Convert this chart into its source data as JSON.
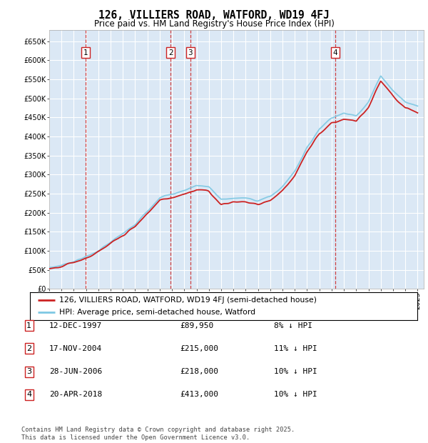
{
  "title": "126, VILLIERS ROAD, WATFORD, WD19 4FJ",
  "subtitle": "Price paid vs. HM Land Registry's House Price Index (HPI)",
  "ytick_values": [
    0,
    50000,
    100000,
    150000,
    200000,
    250000,
    300000,
    350000,
    400000,
    450000,
    500000,
    550000,
    600000,
    650000
  ],
  "hpi_color": "#7ec8e3",
  "price_color": "#cc2222",
  "vline_color": "#cc2222",
  "background_color": "#dbe8f5",
  "purchases": [
    {
      "label": "1",
      "date_str": "12-DEC-1997",
      "price": 89950,
      "pct": "8% ↓ HPI",
      "x_year": 1997.95
    },
    {
      "label": "2",
      "date_str": "17-NOV-2004",
      "price": 215000,
      "pct": "11% ↓ HPI",
      "x_year": 2004.88
    },
    {
      "label": "3",
      "date_str": "28-JUN-2006",
      "price": 218000,
      "pct": "10% ↓ HPI",
      "x_year": 2006.49
    },
    {
      "label": "4",
      "date_str": "20-APR-2018",
      "price": 413000,
      "pct": "10% ↓ HPI",
      "x_year": 2018.3
    }
  ],
  "legend_line1": "126, VILLIERS ROAD, WATFORD, WD19 4FJ (semi-detached house)",
  "legend_line2": "HPI: Average price, semi-detached house, Watford",
  "footnote": "Contains HM Land Registry data © Crown copyright and database right 2025.\nThis data is licensed under the Open Government Licence v3.0.",
  "xlim": [
    1995,
    2025.5
  ],
  "ylim": [
    0,
    680000
  ],
  "table_rows": [
    [
      "1",
      "12-DEC-1997",
      "£89,950",
      "8% ↓ HPI"
    ],
    [
      "2",
      "17-NOV-2004",
      "£215,000",
      "11% ↓ HPI"
    ],
    [
      "3",
      "28-JUN-2006",
      "£218,000",
      "10% ↓ HPI"
    ],
    [
      "4",
      "20-APR-2018",
      "£413,000",
      "10% ↓ HPI"
    ]
  ]
}
